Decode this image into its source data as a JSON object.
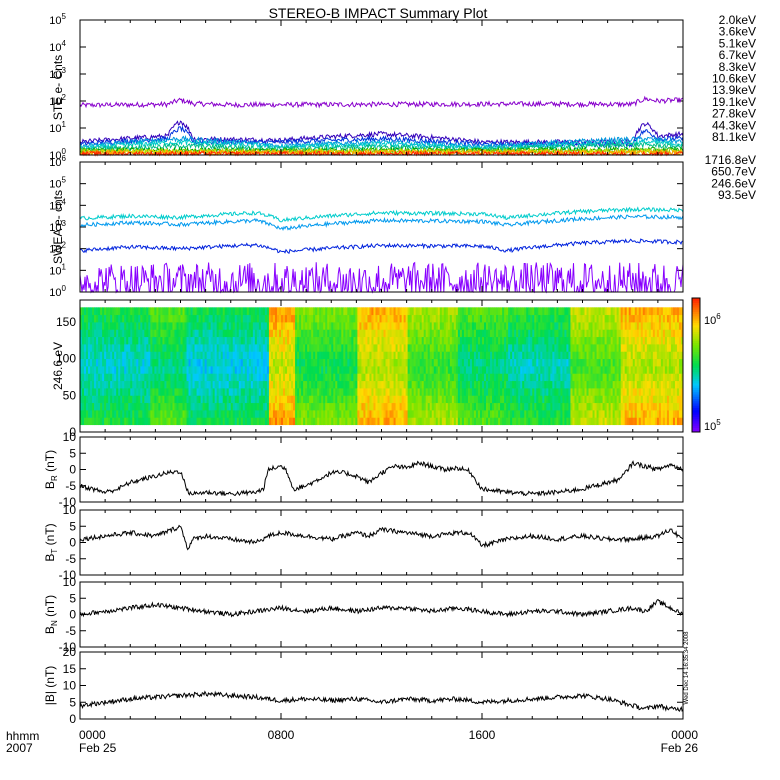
{
  "title": "STEREO-B IMPACT Summary Plot",
  "timestamp": "Wed Dec 14 16:35:34 2008",
  "x_axis": {
    "left_label_line1": "hhmm",
    "left_label_line2": "2007",
    "ticks": [
      {
        "hour": 0,
        "label": "0000",
        "date": "Feb 25"
      },
      {
        "hour": 8,
        "label": "0800",
        "date": ""
      },
      {
        "hour": 16,
        "label": "1600",
        "date": ""
      },
      {
        "hour": 24,
        "label": "0000",
        "date": "Feb 26"
      }
    ],
    "range_hours": [
      0,
      24
    ]
  },
  "chart_data": [
    {
      "id": "ste",
      "type": "line",
      "ylabel": "STE e- Cnts",
      "scale": "log",
      "ylim": [
        1,
        100000
      ],
      "tick_exponents": [
        0,
        1,
        2,
        3,
        4,
        5
      ],
      "series": [
        {
          "name": "2.0keV",
          "color": "#8800cc",
          "x": [
            0,
            3.5,
            4,
            4.5,
            6,
            12,
            18,
            22,
            22.5,
            23,
            24
          ],
          "values": [
            70,
            75,
            110,
            80,
            72,
            75,
            78,
            75,
            120,
            100,
            110
          ]
        },
        {
          "name": "3.6keV",
          "color": "#3300bb",
          "x": [
            0,
            3.5,
            4,
            4.5,
            8,
            12,
            16,
            22,
            22.5,
            23,
            24
          ],
          "values": [
            3,
            5,
            18,
            4,
            3.5,
            6,
            3,
            3,
            15,
            5,
            6
          ]
        },
        {
          "name": "5.1keV",
          "color": "#0033dd",
          "x": [
            0,
            3.5,
            4,
            4.5,
            8,
            12,
            16,
            22,
            22.5,
            23,
            24
          ],
          "values": [
            2.5,
            4,
            10,
            3,
            3,
            4,
            2.5,
            2.5,
            8,
            4,
            4
          ]
        },
        {
          "name": "6.7keV",
          "color": "#0099dd",
          "x": [
            0,
            4,
            8,
            12,
            16,
            22.5,
            24
          ],
          "values": [
            2,
            4,
            2.2,
            3,
            2,
            4,
            3
          ]
        },
        {
          "name": "8.3keV",
          "color": "#00cccc",
          "x": [
            0,
            4,
            8,
            12,
            16,
            22.5,
            24
          ],
          "values": [
            1.8,
            3,
            2,
            2.5,
            1.8,
            3,
            2.5
          ]
        },
        {
          "name": "10.6keV",
          "color": "#00bb88",
          "x": [
            0,
            4,
            8,
            12,
            16,
            22.5,
            24
          ],
          "values": [
            1.6,
            2.2,
            1.7,
            2,
            1.6,
            2.4,
            2
          ]
        },
        {
          "name": "13.9keV",
          "color": "#00aa00",
          "x": [
            0,
            8,
            16,
            24
          ],
          "values": [
            1.5,
            1.5,
            1.5,
            1.6
          ]
        },
        {
          "name": "19.1keV",
          "color": "#88cc00",
          "x": [
            0,
            8,
            16,
            24
          ],
          "values": [
            1.4,
            1.4,
            1.4,
            1.4
          ]
        },
        {
          "name": "27.8keV",
          "color": "#dddd00",
          "x": [
            0,
            8,
            16,
            24
          ],
          "values": [
            1.3,
            1.3,
            1.3,
            1.3
          ]
        },
        {
          "name": "44.3keV",
          "color": "#ff9900",
          "x": [
            0,
            8,
            16,
            24
          ],
          "values": [
            1.2,
            1.2,
            1.2,
            1.2
          ]
        },
        {
          "name": "81.1keV",
          "color": "#ff2200",
          "x": [
            0,
            8,
            16,
            24
          ],
          "values": [
            1.1,
            1.1,
            1.1,
            1.1
          ]
        }
      ]
    },
    {
      "id": "swea",
      "type": "line",
      "ylabel": "SWEA e- cnts",
      "scale": "log",
      "ylim": [
        1,
        1000000
      ],
      "tick_exponents": [
        0,
        1,
        2,
        3,
        4,
        5,
        6
      ],
      "series": [
        {
          "name": "1716.8eV",
          "color": "#8800ff",
          "x": [
            0,
            6,
            12,
            18,
            24
          ],
          "values": [
            3,
            3,
            3,
            3,
            3
          ]
        },
        {
          "name": "650.7eV",
          "color": "#0022dd",
          "x": [
            0,
            2,
            4,
            7,
            8,
            12,
            16,
            17,
            20,
            22,
            24
          ],
          "values": [
            80,
            120,
            100,
            150,
            70,
            140,
            130,
            80,
            180,
            230,
            200
          ]
        },
        {
          "name": "246.6eV",
          "color": "#0099ee",
          "x": [
            0,
            2,
            4,
            7,
            8,
            12,
            16,
            17,
            20,
            22,
            24
          ],
          "values": [
            1200,
            1600,
            1300,
            2000,
            800,
            2000,
            1800,
            1200,
            2400,
            3000,
            2800
          ]
        },
        {
          "name": "93.5eV",
          "color": "#00cccc",
          "x": [
            0,
            2,
            4,
            7,
            8,
            12,
            16,
            17,
            20,
            22,
            24
          ],
          "values": [
            2500,
            3200,
            2800,
            4500,
            2000,
            4500,
            4000,
            2600,
            5200,
            6500,
            6000
          ]
        }
      ]
    },
    {
      "id": "pad",
      "type": "heatmap",
      "ylabel": "246.6 eV",
      "ylim": [
        0,
        180
      ],
      "yticks": [
        0,
        50,
        100,
        150
      ],
      "colorbar": {
        "scale": "log",
        "min_exp": 5,
        "max_exp": 6
      },
      "segments": [
        {
          "x0": 0,
          "x1": 2.8,
          "level": 0.38
        },
        {
          "x0": 2.8,
          "x1": 4.2,
          "level": 0.45
        },
        {
          "x0": 4.2,
          "x1": 7.5,
          "level": 0.36
        },
        {
          "x0": 7.5,
          "x1": 8.5,
          "level": 0.72
        },
        {
          "x0": 8.5,
          "x1": 11.0,
          "level": 0.5
        },
        {
          "x0": 11.0,
          "x1": 13.0,
          "level": 0.7
        },
        {
          "x0": 13.0,
          "x1": 15.0,
          "level": 0.55
        },
        {
          "x0": 15.0,
          "x1": 17.0,
          "level": 0.45
        },
        {
          "x0": 17.0,
          "x1": 19.5,
          "level": 0.4
        },
        {
          "x0": 19.5,
          "x1": 21.5,
          "level": 0.58
        },
        {
          "x0": 21.5,
          "x1": 24,
          "level": 0.7
        }
      ]
    },
    {
      "id": "br",
      "type": "line",
      "ylabel": "B_R (nT)",
      "label_main": "B",
      "label_sub": "R",
      "label_unit": "(nT)",
      "ylim": [
        -10,
        10
      ],
      "yticks": [
        -10,
        -5,
        0,
        5,
        10
      ],
      "series": [
        {
          "name": "",
          "color": "#000000",
          "x": [
            0,
            0.5,
            1,
            1.5,
            2,
            2.5,
            3,
            3.5,
            4,
            4.3,
            4.5,
            5,
            6,
            7,
            7.3,
            7.5,
            8,
            8.2,
            8.5,
            9,
            9.5,
            10,
            10.5,
            11,
            11.5,
            12,
            12.5,
            13,
            13.5,
            14,
            14.5,
            15,
            15.5,
            16,
            17,
            18,
            19,
            20,
            20.5,
            21,
            21.5,
            22,
            22.5,
            23,
            23.5,
            24
          ],
          "values": [
            -5,
            -6,
            -7,
            -6,
            -4,
            -3,
            -2,
            -1,
            -0.5,
            -7,
            -7.5,
            -7,
            -7.5,
            -7,
            -6,
            0,
            1,
            0,
            -6,
            -5,
            -3,
            -1,
            -1,
            -2,
            -4,
            -1,
            1,
            0.5,
            2,
            1,
            0,
            0.5,
            -0.5,
            -6,
            -7,
            -7.5,
            -7,
            -6,
            -5,
            -4,
            -3,
            2,
            1,
            0,
            1.5,
            0
          ]
        }
      ]
    },
    {
      "id": "bt",
      "type": "line",
      "ylabel": "B_T (nT)",
      "label_main": "B",
      "label_sub": "T",
      "label_unit": "(nT)",
      "ylim": [
        -10,
        10
      ],
      "yticks": [
        -10,
        -5,
        0,
        5,
        10
      ],
      "series": [
        {
          "name": "",
          "color": "#000000",
          "x": [
            0,
            1,
            2,
            3,
            4,
            4.3,
            4.5,
            5,
            6,
            7,
            7.5,
            8,
            9,
            10,
            11,
            11.5,
            12,
            13,
            14,
            15,
            15.5,
            16,
            17,
            18,
            19,
            20,
            21,
            22,
            23,
            23.5,
            24
          ],
          "values": [
            1,
            2,
            3,
            2,
            5,
            -2,
            1,
            2,
            1,
            0,
            2,
            3,
            2,
            1,
            3,
            2,
            4,
            3,
            2,
            3,
            3,
            -1,
            1,
            2,
            1,
            2,
            1,
            1,
            2,
            4,
            1
          ]
        }
      ]
    },
    {
      "id": "bn",
      "type": "line",
      "ylabel": "B_N (nT)",
      "label_main": "B",
      "label_sub": "N",
      "label_unit": "(nT)",
      "ylim": [
        -10,
        10
      ],
      "yticks": [
        -10,
        -5,
        0,
        5,
        10
      ],
      "series": [
        {
          "name": "",
          "color": "#000000",
          "x": [
            0,
            1,
            2,
            3,
            4,
            5,
            6,
            7,
            8,
            9,
            10,
            11,
            12,
            13,
            14,
            15,
            16,
            17,
            18,
            19,
            20,
            21,
            22,
            22.5,
            23,
            23.5,
            24
          ],
          "values": [
            0,
            1,
            2,
            3,
            2,
            1,
            0,
            1,
            2,
            1,
            2,
            1,
            2,
            2,
            1,
            2,
            1,
            0,
            1,
            1,
            0,
            1,
            2,
            1,
            4,
            2,
            0
          ]
        }
      ]
    },
    {
      "id": "bmag",
      "type": "line",
      "ylabel": "|B| (nT)",
      "label_main": "|B|",
      "label_sub": "",
      "label_unit": "(nT)",
      "ylim": [
        0,
        20
      ],
      "yticks": [
        0,
        5,
        10,
        15,
        20
      ],
      "series": [
        {
          "name": "",
          "color": "#000000",
          "x": [
            0,
            1,
            2,
            3,
            4,
            5,
            6,
            7,
            8,
            9,
            10,
            11,
            12,
            13,
            14,
            15,
            16,
            17,
            18,
            19,
            20,
            21,
            22,
            22.5,
            23,
            23.5,
            24
          ],
          "values": [
            4,
            5,
            6,
            6.5,
            7,
            7.5,
            7,
            6.5,
            5.5,
            6,
            5.5,
            6,
            5,
            6,
            5.5,
            6,
            5,
            5.5,
            6,
            6.5,
            7,
            6,
            4,
            3,
            4,
            3,
            3
          ]
        }
      ]
    }
  ]
}
